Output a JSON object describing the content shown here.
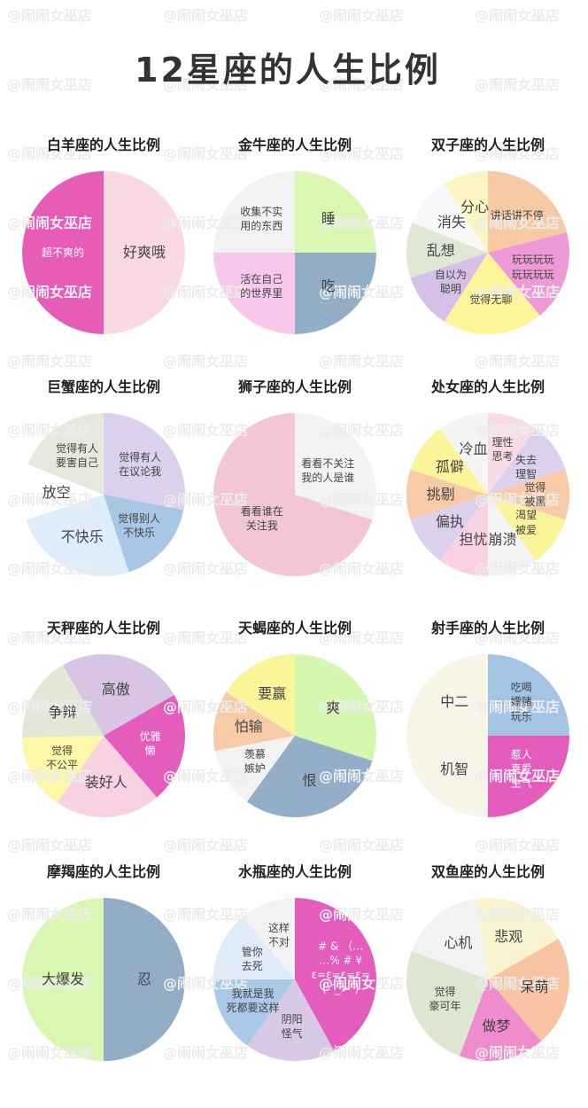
{
  "title": "12星座的人生比例",
  "watermark": "@闹闹女巫店",
  "chart_data": [
    {
      "type": "pie",
      "title": "白羊座的人生比例",
      "categories": [
        "好爽哦",
        "超不爽的"
      ],
      "values": [
        50,
        50
      ],
      "colors": [
        "#fbd9e3",
        "#e65cb6"
      ]
    },
    {
      "type": "pie",
      "title": "金牛座的人生比例",
      "categories": [
        "睡",
        "吃",
        "活在自己\n的世界里",
        "收集不实\n用的东西"
      ],
      "values": [
        25,
        25,
        25,
        25
      ],
      "colors": [
        "#d9f7b0",
        "#94adc7",
        "#f8c8ec",
        "#f2f2f2"
      ]
    },
    {
      "type": "pie",
      "title": "双子座的人生比例",
      "categories": [
        "讲话讲不停",
        "玩玩玩玩\n玩玩玩玩",
        "觉得无聊",
        "自以为\n聪明",
        "乱想",
        "消失",
        "分心"
      ],
      "values": [
        21,
        18,
        20,
        11,
        11,
        10,
        9
      ],
      "colors": [
        "#f8caa4",
        "#ef9ad6",
        "#fdf59a",
        "#d6c0e8",
        "#dfe8d4",
        "#f8f8f8",
        "#fbf5c4"
      ]
    },
    {
      "type": "pie",
      "title": "巨蟹座的人生比例",
      "categories": [
        "觉得有人\n在议论我",
        "觉得别人\n不快乐",
        "不快乐",
        "放空",
        "觉得有人\n要害自己"
      ],
      "values": [
        28,
        17,
        25,
        11,
        19
      ],
      "colors": [
        "#ddd0ec",
        "#a7c7e4",
        "#dfecfa",
        "#ffffff",
        "#e6e8dc"
      ]
    },
    {
      "type": "pie",
      "title": "狮子座的人生比例",
      "categories": [
        "看看不关注\n我的人是谁",
        "看看谁在\n关注我"
      ],
      "values": [
        30,
        70
      ],
      "colors": [
        "#f3f3f3",
        "#f3c6d6"
      ]
    },
    {
      "type": "pie",
      "title": "处女座的人生比例",
      "categories": [
        "理性\n思考",
        "失去\n理智",
        "觉得\n被黑",
        "渴望\n被爱",
        "崩溃",
        "担忧",
        "偏执",
        "挑剔",
        "孤僻",
        "冷血"
      ],
      "values": [
        10,
        10,
        10,
        10,
        10,
        10,
        10,
        10,
        10,
        10
      ],
      "colors": [
        "#f8dbe6",
        "#ddd0ec",
        "#f8cba8",
        "#fbf59a",
        "#f4f4f4",
        "#f8d2e2",
        "#ddd0ec",
        "#f8cba8",
        "#fbf59a",
        "#f4f4f4"
      ]
    },
    {
      "type": "pie",
      "title": "天秤座的人生比例",
      "categories": [
        "优雅\n懒",
        "装好人",
        "觉得\n不公平",
        "争辩",
        "高傲"
      ],
      "values": [
        22,
        21,
        15,
        17,
        25
      ],
      "colors": [
        "#e45cbc",
        "#f8d2e2",
        "#fbf8a8",
        "#e3e7d8",
        "#d7c5e3"
      ]
    },
    {
      "type": "pie",
      "title": "天蝎座的人生比例",
      "categories": [
        "爽",
        "恨",
        "羡慕\n嫉妒",
        "怕输",
        "要赢"
      ],
      "values": [
        30,
        30,
        12,
        12,
        16
      ],
      "colors": [
        "#d6f7b0",
        "#94adc9",
        "#f2f2f2",
        "#f8cba8",
        "#fbf59a"
      ]
    },
    {
      "type": "pie",
      "title": "射手座的人生比例",
      "categories": [
        "吃喝\n嫖赌\n玩乐",
        "惹人\n喜爱\n生气",
        "机智",
        "中二"
      ],
      "values": [
        25,
        25,
        25,
        25
      ],
      "colors": [
        "#a4c4e4",
        "#e45cbc",
        "#f7f5e8",
        "#f7f5e8"
      ]
    },
    {
      "type": "pie",
      "title": "摩羯座的人生比例",
      "categories": [
        "忍",
        "大爆发"
      ],
      "values": [
        50,
        50
      ],
      "colors": [
        "#94adc7",
        "#d9f7b0"
      ]
    },
    {
      "type": "pie",
      "title": "水瓶座的人生比例",
      "categories": [
        "# & （…\n…% # ¥\nε=ε=ε=ε=\n( ´_>`)",
        "阴阳\n怪气",
        "我就是我\n死都要这样",
        "管你\n去死",
        "这样\n不对"
      ],
      "values": [
        42,
        18,
        15,
        14,
        11
      ],
      "colors": [
        "#e45cbc",
        "#d9c7e6",
        "#a9c9e6",
        "#dfecf8",
        "#f2f2f2"
      ]
    },
    {
      "type": "pie",
      "title": "双鱼座的人生比例",
      "categories": [
        "呆萌",
        "做梦",
        "觉得\n豪可年",
        "心机",
        "悲观"
      ],
      "values": [
        22,
        17,
        25,
        17,
        19
      ],
      "colors": [
        "#f8c4a4",
        "#ef8ccd",
        "#dde6d0",
        "#f2f2f2",
        "#f9f3d0"
      ]
    }
  ]
}
